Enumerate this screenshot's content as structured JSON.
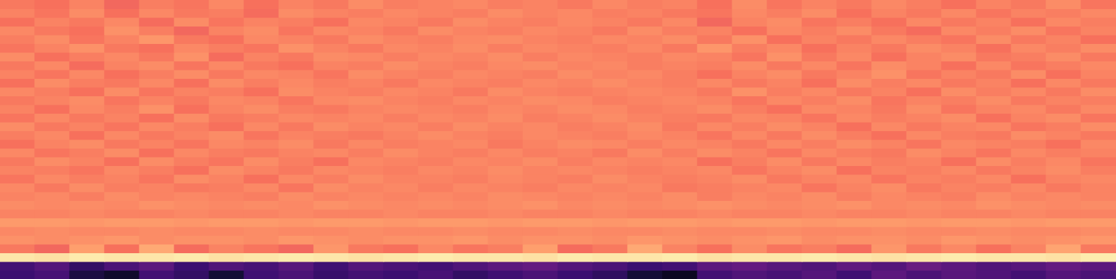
{
  "chart_data": {
    "type": "heatmap",
    "color": "magma",
    "zlim": [
      0,
      1
    ],
    "tick_labels": false,
    "grid": false,
    "z": [
      [
        0.72,
        0.7,
        0.74,
        0.68,
        0.73,
        0.71,
        0.75,
        0.7,
        0.74,
        0.72,
        0.76,
        0.73,
        0.74,
        0.75,
        0.73,
        0.74,
        0.72,
        0.75,
        0.73,
        0.74,
        0.7,
        0.76,
        0.71,
        0.74,
        0.72,
        0.75,
        0.73,
        0.7,
        0.74,
        0.72,
        0.76,
        0.71
      ],
      [
        0.74,
        0.71,
        0.76,
        0.7,
        0.75,
        0.72,
        0.73,
        0.69,
        0.76,
        0.74,
        0.73,
        0.75,
        0.74,
        0.73,
        0.76,
        0.74,
        0.75,
        0.73,
        0.74,
        0.72,
        0.71,
        0.75,
        0.73,
        0.76,
        0.7,
        0.74,
        0.72,
        0.75,
        0.71,
        0.74,
        0.73,
        0.75
      ],
      [
        0.7,
        0.74,
        0.72,
        0.75,
        0.69,
        0.76,
        0.71,
        0.74,
        0.73,
        0.7,
        0.75,
        0.74,
        0.72,
        0.76,
        0.74,
        0.73,
        0.75,
        0.74,
        0.72,
        0.75,
        0.68,
        0.74,
        0.76,
        0.71,
        0.73,
        0.7,
        0.75,
        0.72,
        0.74,
        0.7,
        0.75,
        0.73
      ],
      [
        0.75,
        0.72,
        0.7,
        0.77,
        0.73,
        0.68,
        0.74,
        0.76,
        0.71,
        0.75,
        0.74,
        0.72,
        0.76,
        0.74,
        0.73,
        0.75,
        0.74,
        0.72,
        0.76,
        0.73,
        0.74,
        0.7,
        0.75,
        0.73,
        0.76,
        0.72,
        0.69,
        0.75,
        0.73,
        0.76,
        0.71,
        0.74
      ],
      [
        0.73,
        0.76,
        0.71,
        0.74,
        0.78,
        0.72,
        0.7,
        0.75,
        0.74,
        0.72,
        0.76,
        0.74,
        0.73,
        0.75,
        0.76,
        0.74,
        0.73,
        0.75,
        0.74,
        0.76,
        0.72,
        0.77,
        0.7,
        0.74,
        0.72,
        0.75,
        0.73,
        0.71,
        0.76,
        0.72,
        0.74,
        0.7
      ],
      [
        0.71,
        0.74,
        0.77,
        0.72,
        0.7,
        0.75,
        0.73,
        0.71,
        0.77,
        0.74,
        0.72,
        0.75,
        0.74,
        0.76,
        0.73,
        0.75,
        0.74,
        0.73,
        0.75,
        0.72,
        0.78,
        0.73,
        0.75,
        0.7,
        0.74,
        0.72,
        0.76,
        0.74,
        0.7,
        0.75,
        0.73,
        0.76
      ],
      [
        0.76,
        0.7,
        0.73,
        0.75,
        0.72,
        0.77,
        0.69,
        0.74,
        0.72,
        0.76,
        0.75,
        0.73,
        0.75,
        0.74,
        0.76,
        0.73,
        0.75,
        0.74,
        0.73,
        0.75,
        0.74,
        0.71,
        0.77,
        0.72,
        0.75,
        0.7,
        0.74,
        0.76,
        0.72,
        0.73,
        0.76,
        0.72
      ],
      [
        0.72,
        0.75,
        0.69,
        0.74,
        0.76,
        0.71,
        0.75,
        0.72,
        0.7,
        0.74,
        0.73,
        0.76,
        0.74,
        0.73,
        0.75,
        0.76,
        0.74,
        0.75,
        0.73,
        0.74,
        0.73,
        0.76,
        0.72,
        0.75,
        0.71,
        0.76,
        0.74,
        0.7,
        0.75,
        0.71,
        0.73,
        0.75
      ],
      [
        0.74,
        0.71,
        0.75,
        0.7,
        0.73,
        0.76,
        0.72,
        0.75,
        0.74,
        0.71,
        0.76,
        0.74,
        0.73,
        0.75,
        0.74,
        0.73,
        0.76,
        0.74,
        0.75,
        0.73,
        0.7,
        0.74,
        0.76,
        0.72,
        0.74,
        0.77,
        0.71,
        0.74,
        0.72,
        0.76,
        0.7,
        0.74
      ],
      [
        0.7,
        0.76,
        0.73,
        0.72,
        0.75,
        0.7,
        0.76,
        0.73,
        0.75,
        0.73,
        0.74,
        0.72,
        0.75,
        0.74,
        0.73,
        0.75,
        0.74,
        0.76,
        0.74,
        0.73,
        0.75,
        0.72,
        0.74,
        0.7,
        0.76,
        0.73,
        0.75,
        0.72,
        0.74,
        0.7,
        0.75,
        0.72
      ],
      [
        0.75,
        0.73,
        0.7,
        0.76,
        0.71,
        0.74,
        0.73,
        0.7,
        0.76,
        0.74,
        0.73,
        0.75,
        0.74,
        0.72,
        0.76,
        0.74,
        0.73,
        0.74,
        0.75,
        0.74,
        0.72,
        0.77,
        0.73,
        0.75,
        0.72,
        0.74,
        0.7,
        0.76,
        0.73,
        0.75,
        0.72,
        0.76
      ],
      [
        0.72,
        0.74,
        0.76,
        0.71,
        0.74,
        0.72,
        0.75,
        0.74,
        0.71,
        0.75,
        0.76,
        0.74,
        0.73,
        0.75,
        0.74,
        0.76,
        0.75,
        0.73,
        0.74,
        0.75,
        0.74,
        0.71,
        0.75,
        0.73,
        0.76,
        0.71,
        0.74,
        0.73,
        0.76,
        0.72,
        0.74,
        0.73
      ],
      [
        0.74,
        0.7,
        0.75,
        0.73,
        0.77,
        0.7,
        0.74,
        0.76,
        0.73,
        0.72,
        0.74,
        0.75,
        0.74,
        0.73,
        0.75,
        0.74,
        0.76,
        0.75,
        0.73,
        0.74,
        0.76,
        0.73,
        0.7,
        0.75,
        0.74,
        0.72,
        0.76,
        0.71,
        0.74,
        0.75,
        0.72,
        0.75
      ],
      [
        0.71,
        0.75,
        0.72,
        0.74,
        0.7,
        0.76,
        0.72,
        0.73,
        0.75,
        0.74,
        0.75,
        0.73,
        0.75,
        0.74,
        0.76,
        0.73,
        0.74,
        0.76,
        0.74,
        0.73,
        0.72,
        0.75,
        0.74,
        0.71,
        0.75,
        0.73,
        0.74,
        0.76,
        0.7,
        0.74,
        0.76,
        0.71
      ],
      [
        0.76,
        0.72,
        0.74,
        0.71,
        0.75,
        0.73,
        0.7,
        0.75,
        0.72,
        0.76,
        0.74,
        0.75,
        0.73,
        0.76,
        0.74,
        0.75,
        0.73,
        0.74,
        0.76,
        0.72,
        0.75,
        0.73,
        0.76,
        0.74,
        0.7,
        0.75,
        0.72,
        0.74,
        0.75,
        0.71,
        0.73,
        0.76
      ],
      [
        0.73,
        0.75,
        0.7,
        0.75,
        0.72,
        0.74,
        0.76,
        0.71,
        0.74,
        0.73,
        0.72,
        0.74,
        0.76,
        0.74,
        0.73,
        0.75,
        0.74,
        0.73,
        0.75,
        0.74,
        0.71,
        0.75,
        0.72,
        0.76,
        0.73,
        0.7,
        0.75,
        0.73,
        0.72,
        0.76,
        0.74,
        0.72
      ],
      [
        0.7,
        0.74,
        0.76,
        0.72,
        0.74,
        0.71,
        0.75,
        0.74,
        0.76,
        0.72,
        0.75,
        0.73,
        0.74,
        0.75,
        0.72,
        0.74,
        0.76,
        0.75,
        0.73,
        0.75,
        0.74,
        0.72,
        0.75,
        0.73,
        0.76,
        0.74,
        0.71,
        0.75,
        0.74,
        0.73,
        0.7,
        0.75
      ],
      [
        0.75,
        0.71,
        0.73,
        0.76,
        0.7,
        0.75,
        0.73,
        0.72,
        0.74,
        0.75,
        0.73,
        0.76,
        0.74,
        0.73,
        0.75,
        0.73,
        0.74,
        0.72,
        0.76,
        0.73,
        0.76,
        0.74,
        0.71,
        0.75,
        0.73,
        0.72,
        0.76,
        0.74,
        0.71,
        0.75,
        0.73,
        0.74
      ],
      [
        0.72,
        0.76,
        0.74,
        0.7,
        0.76,
        0.73,
        0.71,
        0.76,
        0.73,
        0.7,
        0.75,
        0.74,
        0.73,
        0.75,
        0.74,
        0.76,
        0.73,
        0.75,
        0.74,
        0.75,
        0.7,
        0.73,
        0.76,
        0.72,
        0.75,
        0.73,
        0.74,
        0.7,
        0.76,
        0.73,
        0.75,
        0.71
      ],
      [
        0.74,
        0.73,
        0.71,
        0.75,
        0.73,
        0.7,
        0.76,
        0.74,
        0.72,
        0.75,
        0.74,
        0.73,
        0.75,
        0.74,
        0.76,
        0.74,
        0.75,
        0.74,
        0.73,
        0.74,
        0.75,
        0.71,
        0.74,
        0.76,
        0.7,
        0.74,
        0.73,
        0.75,
        0.72,
        0.74,
        0.76,
        0.73
      ],
      [
        0.71,
        0.75,
        0.73,
        0.74,
        0.71,
        0.76,
        0.74,
        0.7,
        0.75,
        0.73,
        0.76,
        0.74,
        0.74,
        0.73,
        0.75,
        0.74,
        0.73,
        0.76,
        0.74,
        0.73,
        0.74,
        0.76,
        0.72,
        0.74,
        0.75,
        0.71,
        0.74,
        0.73,
        0.75,
        0.7,
        0.74,
        0.75
      ],
      [
        0.75,
        0.72,
        0.76,
        0.73,
        0.74,
        0.72,
        0.73,
        0.75,
        0.71,
        0.76,
        0.74,
        0.75,
        0.73,
        0.75,
        0.74,
        0.73,
        0.75,
        0.74,
        0.75,
        0.72,
        0.73,
        0.74,
        0.75,
        0.71,
        0.74,
        0.76,
        0.72,
        0.74,
        0.73,
        0.75,
        0.72,
        0.74
      ],
      [
        0.74,
        0.75,
        0.73,
        0.76,
        0.74,
        0.75,
        0.74,
        0.73,
        0.76,
        0.74,
        0.75,
        0.74,
        0.75,
        0.74,
        0.76,
        0.75,
        0.74,
        0.75,
        0.74,
        0.76,
        0.73,
        0.75,
        0.74,
        0.76,
        0.73,
        0.75,
        0.74,
        0.73,
        0.76,
        0.74,
        0.75,
        0.74
      ],
      [
        0.76,
        0.75,
        0.76,
        0.75,
        0.77,
        0.76,
        0.75,
        0.76,
        0.75,
        0.77,
        0.76,
        0.75,
        0.76,
        0.75,
        0.76,
        0.77,
        0.75,
        0.76,
        0.75,
        0.76,
        0.77,
        0.76,
        0.75,
        0.76,
        0.77,
        0.75,
        0.76,
        0.75,
        0.77,
        0.76,
        0.75,
        0.76
      ],
      [
        0.74,
        0.74,
        0.75,
        0.74,
        0.74,
        0.75,
        0.74,
        0.74,
        0.75,
        0.74,
        0.74,
        0.75,
        0.74,
        0.74,
        0.75,
        0.74,
        0.74,
        0.75,
        0.74,
        0.74,
        0.75,
        0.74,
        0.74,
        0.75,
        0.74,
        0.74,
        0.75,
        0.74,
        0.74,
        0.75,
        0.74,
        0.74
      ],
      [
        0.79,
        0.79,
        0.78,
        0.79,
        0.79,
        0.78,
        0.79,
        0.79,
        0.78,
        0.79,
        0.79,
        0.78,
        0.79,
        0.79,
        0.78,
        0.79,
        0.79,
        0.78,
        0.79,
        0.79,
        0.78,
        0.79,
        0.79,
        0.78,
        0.79,
        0.79,
        0.78,
        0.79,
        0.79,
        0.78,
        0.79,
        0.79
      ],
      [
        0.75,
        0.76,
        0.75,
        0.75,
        0.76,
        0.75,
        0.75,
        0.76,
        0.75,
        0.75,
        0.76,
        0.75,
        0.75,
        0.76,
        0.75,
        0.75,
        0.76,
        0.75,
        0.75,
        0.76,
        0.75,
        0.75,
        0.76,
        0.75,
        0.75,
        0.76,
        0.75,
        0.75,
        0.76,
        0.75,
        0.75,
        0.76
      ],
      [
        0.77,
        0.76,
        0.77,
        0.78,
        0.76,
        0.77,
        0.77,
        0.76,
        0.78,
        0.77,
        0.76,
        0.77,
        0.77,
        0.78,
        0.76,
        0.77,
        0.77,
        0.76,
        0.78,
        0.77,
        0.76,
        0.77,
        0.78,
        0.76,
        0.77,
        0.77,
        0.76,
        0.78,
        0.77,
        0.76,
        0.77,
        0.78
      ],
      [
        0.72,
        0.68,
        0.8,
        0.7,
        0.82,
        0.69,
        0.74,
        0.71,
        0.68,
        0.78,
        0.72,
        0.7,
        0.75,
        0.71,
        0.73,
        0.8,
        0.69,
        0.72,
        0.82,
        0.74,
        0.7,
        0.76,
        0.71,
        0.73,
        0.69,
        0.78,
        0.72,
        0.75,
        0.7,
        0.74,
        0.81,
        0.72
      ],
      [
        0.95,
        0.94,
        0.96,
        0.95,
        0.95,
        0.96,
        0.94,
        0.95,
        0.96,
        0.95,
        0.94,
        0.95,
        0.96,
        0.95,
        0.95,
        0.94,
        0.96,
        0.95,
        0.95,
        0.96,
        0.94,
        0.95,
        0.95,
        0.96,
        0.95,
        0.94,
        0.95,
        0.96,
        0.95,
        0.95,
        0.94,
        0.96
      ],
      [
        0.22,
        0.26,
        0.18,
        0.24,
        0.28,
        0.2,
        0.25,
        0.23,
        0.27,
        0.21,
        0.26,
        0.24,
        0.22,
        0.25,
        0.28,
        0.3,
        0.26,
        0.24,
        0.2,
        0.22,
        0.28,
        0.3,
        0.27,
        0.25,
        0.29,
        0.26,
        0.31,
        0.28,
        0.25,
        0.27,
        0.3,
        0.28
      ],
      [
        0.2,
        0.23,
        0.12,
        0.08,
        0.22,
        0.18,
        0.1,
        0.21,
        0.24,
        0.19,
        0.22,
        0.2,
        0.23,
        0.18,
        0.21,
        0.24,
        0.2,
        0.17,
        0.1,
        0.06,
        0.22,
        0.25,
        0.23,
        0.26,
        0.21,
        0.28,
        0.24,
        0.27,
        0.25,
        0.22,
        0.26,
        0.24
      ]
    ]
  }
}
